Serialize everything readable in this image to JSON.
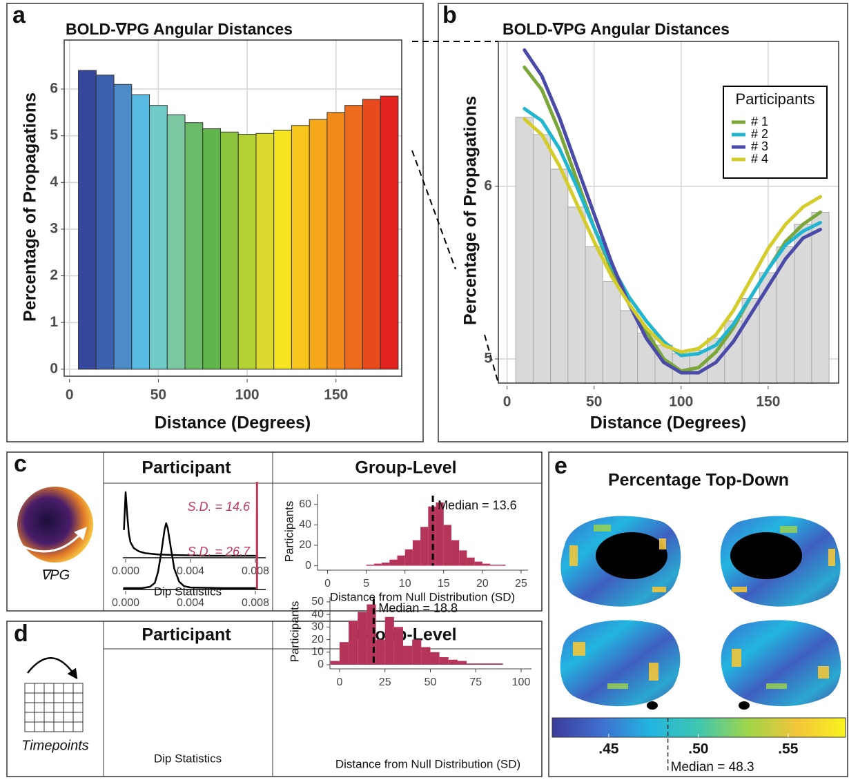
{
  "figure": {
    "panels": [
      "a",
      "b",
      "c",
      "d",
      "e"
    ],
    "row_headers": {
      "c": [
        "Participant",
        "Group-Level"
      ],
      "d": [
        "Participant",
        "Group-Level"
      ]
    },
    "icons": [
      "∇PG",
      "Timepoints"
    ]
  },
  "chart_data": [
    {
      "type": "bar",
      "title": "BOLD-∇PG Angular Distances",
      "x_label": "Distance (Degrees)",
      "y_label": "Percentage of Propagations",
      "x": [
        10,
        20,
        30,
        40,
        50,
        60,
        70,
        80,
        90,
        100,
        110,
        120,
        130,
        140,
        150,
        160,
        170,
        180
      ],
      "values": [
        6.4,
        6.3,
        6.1,
        5.88,
        5.65,
        5.45,
        5.28,
        5.15,
        5.08,
        5.03,
        5.05,
        5.12,
        5.22,
        5.35,
        5.5,
        5.65,
        5.78,
        5.85
      ],
      "colors": [
        "#34479a",
        "#3c62ad",
        "#4c8bc6",
        "#58b9e2",
        "#6fcbc6",
        "#7cc8a2",
        "#6bbb6a",
        "#5fb54a",
        "#8dc43e",
        "#b4d136",
        "#dcda2e",
        "#f5e41f",
        "#f7c51c",
        "#f5a81a",
        "#f28a1a",
        "#ee6a1d",
        "#e84a1e",
        "#e3231f"
      ],
      "xlim": [
        -3,
        187
      ],
      "ylim": [
        -0.15,
        7.05
      ],
      "xticks": [
        0,
        50,
        100,
        150
      ],
      "yticks": [
        0,
        1,
        2,
        3,
        4,
        5,
        6
      ],
      "grid": true
    },
    {
      "type": "line",
      "title": "BOLD-∇PG Angular Distances",
      "x_label": "Distance (Degrees)",
      "y_label": "Percentage of Propagations",
      "x": [
        10,
        20,
        30,
        40,
        50,
        60,
        70,
        80,
        90,
        100,
        110,
        120,
        130,
        140,
        150,
        160,
        170,
        180
      ],
      "background_bars": {
        "color": "#d9d9d9",
        "values": [
          6.4,
          6.3,
          6.1,
          5.88,
          5.65,
          5.45,
          5.28,
          5.15,
          5.08,
          5.03,
          5.05,
          5.12,
          5.22,
          5.35,
          5.5,
          5.65,
          5.78,
          5.85
        ]
      },
      "series": [
        {
          "name": "# 1",
          "color": "#7ba63a",
          "values": [
            6.69,
            6.56,
            6.32,
            6.04,
            5.76,
            5.52,
            5.32,
            5.16,
            5.0,
            4.93,
            4.95,
            5.04,
            5.18,
            5.36,
            5.52,
            5.68,
            5.78,
            5.85
          ]
        },
        {
          "name": "# 2",
          "color": "#22b5d0",
          "values": [
            6.45,
            6.38,
            6.22,
            6.0,
            5.76,
            5.54,
            5.36,
            5.22,
            5.1,
            5.02,
            5.03,
            5.08,
            5.2,
            5.36,
            5.52,
            5.66,
            5.74,
            5.79
          ]
        },
        {
          "name": "# 3",
          "color": "#4a4aa8",
          "values": [
            6.79,
            6.64,
            6.4,
            6.12,
            5.84,
            5.56,
            5.32,
            5.12,
            4.98,
            4.92,
            4.92,
            4.98,
            5.1,
            5.26,
            5.42,
            5.58,
            5.7,
            5.75
          ]
        },
        {
          "name": "# 4",
          "color": "#d4cc2a",
          "values": [
            6.39,
            6.3,
            6.12,
            5.9,
            5.68,
            5.48,
            5.32,
            5.18,
            5.08,
            5.04,
            5.06,
            5.14,
            5.28,
            5.46,
            5.64,
            5.78,
            5.88,
            5.94
          ]
        }
      ],
      "legend_title": "Participants",
      "legend": "top-right",
      "xlim": [
        -5,
        190.5
      ],
      "ylim": [
        4.86,
        6.84
      ],
      "xticks": [
        0,
        50,
        100,
        150
      ],
      "yticks": [
        5,
        6
      ],
      "grid": true
    },
    {
      "type": "line",
      "x_label": "Dip Statistics",
      "x": [
        -0.0001,
        0,
        0.0001,
        0.0002,
        0.0003,
        0.0005,
        0.0008,
        0.0012,
        0.002,
        0.003,
        0.005,
        0.008
      ],
      "series": [
        {
          "color": "#000000",
          "values": [
            0.42,
            1.0,
            0.65,
            0.35,
            0.22,
            0.13,
            0.08,
            0.05,
            0.03,
            0.02,
            0.01,
            0.01
          ]
        }
      ],
      "xlim": [
        -0.00017,
        0.00864
      ],
      "ylim": [
        0,
        1
      ],
      "xticks": [
        {
          "value": 0,
          "label": "0.000"
        },
        {
          "value": 0.004,
          "label": "0.004"
        },
        {
          "value": 0.008,
          "label": "0.008"
        }
      ],
      "marker_x": 0.0081,
      "marker_color": "#c0385a",
      "annotation": "S.D. = 14.6"
    },
    {
      "type": "histogram",
      "x_label": "Distance from Null Distribution (SD)",
      "y_label": "Participants",
      "bins": [
        5,
        6,
        7,
        8,
        9,
        10,
        11,
        12,
        13,
        14,
        15,
        16,
        17,
        18,
        19,
        20,
        21,
        22,
        23
      ],
      "values": [
        1,
        2,
        3,
        6,
        10,
        16,
        25,
        38,
        58,
        62,
        40,
        25,
        15,
        8,
        4,
        2,
        1,
        1
      ],
      "color": "#b5345a",
      "xlim": [
        -1.3,
        25.9
      ],
      "ylim": [
        -3,
        70
      ],
      "xticks": [
        0,
        5,
        10,
        15,
        20,
        25
      ],
      "yticks": [
        0,
        20,
        40,
        60
      ],
      "median": 13.6,
      "median_label": "Median = 13.6"
    },
    {
      "type": "line",
      "x_label": "Dip Statistics",
      "x": [
        -0.0001,
        0.001,
        0.0015,
        0.0018,
        0.002,
        0.0022,
        0.0024,
        0.0025,
        0.0026,
        0.0028,
        0.003,
        0.0033,
        0.0036,
        0.004,
        0.006,
        0.008
      ],
      "series": [
        {
          "color": "#000000",
          "values": [
            0,
            0,
            0.02,
            0.08,
            0.25,
            0.55,
            0.9,
            1.0,
            0.92,
            0.6,
            0.3,
            0.1,
            0.03,
            0.01,
            0,
            0
          ]
        }
      ],
      "xlim": [
        -0.00017,
        0.00864
      ],
      "ylim": [
        0,
        1
      ],
      "xticks": [
        {
          "value": 0,
          "label": "0.000"
        },
        {
          "value": 0.004,
          "label": "0.004"
        },
        {
          "value": 0.008,
          "label": "0.008"
        }
      ],
      "marker_x": 0.0081,
      "marker_color": "#c0385a",
      "annotation": "S.D. = 26.7"
    },
    {
      "type": "histogram",
      "x_label": "Distance from Null Distribution (SD)",
      "y_label": "Participants",
      "bins": [
        -5,
        0,
        5,
        10,
        15,
        20,
        25,
        30,
        35,
        40,
        45,
        50,
        55,
        60,
        65,
        70,
        75,
        80,
        85,
        90,
        95
      ],
      "values": [
        3,
        18,
        35,
        42,
        48,
        20,
        38,
        30,
        15,
        20,
        14,
        10,
        6,
        4,
        3,
        1,
        1,
        1,
        1,
        0
      ],
      "color": "#b5345a",
      "xlim": [
        -5.3,
        105.7
      ],
      "ylim": [
        -2.2,
        53.8
      ],
      "xticks": [
        0,
        25,
        50,
        75,
        100
      ],
      "yticks": [
        0,
        10,
        20,
        30,
        40,
        50
      ],
      "median": 18.8,
      "median_label": "Median = 18.8"
    },
    {
      "type": "colorbar",
      "title": "Percentage Top-Down",
      "colors": [
        "#3b3b9a",
        "#3f6fd0",
        "#22b5e0",
        "#3fc6b0",
        "#9fd54a",
        "#f2c53a",
        "#f9f31e"
      ],
      "xlim": [
        0.4185,
        0.582
      ],
      "xticks": [
        {
          "value": 0.45,
          "label": ".45"
        },
        {
          "value": 0.5,
          "label": ".50"
        },
        {
          "value": 0.55,
          "label": ".55"
        }
      ],
      "median": 0.483,
      "median_label": "Median = 48.3"
    }
  ]
}
